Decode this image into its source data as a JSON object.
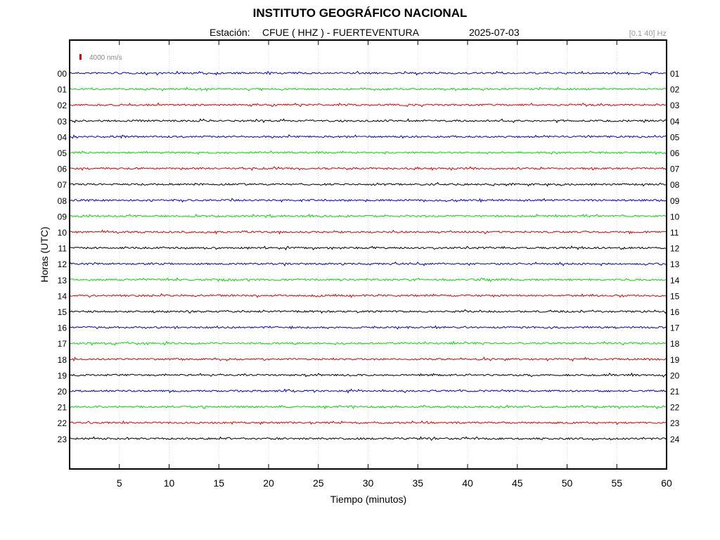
{
  "header": {
    "title": "INSTITUTO GEOGRÁFICO NACIONAL",
    "station_label": "Estación:",
    "station": "CFUE ( HHZ ) - FUERTEVENTURA",
    "date": "2025-07-03",
    "filter": "[0.1 40] Hz"
  },
  "chart_data": {
    "type": "line",
    "xlabel": "Tiempo (minutos)",
    "ylabel": "Horas (UTC)",
    "xlim": [
      0,
      60
    ],
    "x_ticks": [
      5,
      10,
      15,
      20,
      25,
      30,
      35,
      40,
      45,
      50,
      55,
      60
    ],
    "grid": "vertical",
    "scale_label": "4000 nm/s",
    "scale_color": "#e00000",
    "series_colors": [
      "#0000cc",
      "#00dd00",
      "#dd0000",
      "#000000"
    ],
    "left_labels": [
      "00",
      "01",
      "02",
      "03",
      "04",
      "05",
      "06",
      "07",
      "08",
      "09",
      "10",
      "11",
      "12",
      "13",
      "14",
      "15",
      "16",
      "17",
      "18",
      "19",
      "20",
      "21",
      "22",
      "23"
    ],
    "right_labels": [
      "01",
      "02",
      "03",
      "04",
      "05",
      "06",
      "07",
      "08",
      "09",
      "10",
      "11",
      "12",
      "13",
      "14",
      "15",
      "16",
      "17",
      "18",
      "19",
      "20",
      "21",
      "22",
      "23",
      "24"
    ]
  }
}
